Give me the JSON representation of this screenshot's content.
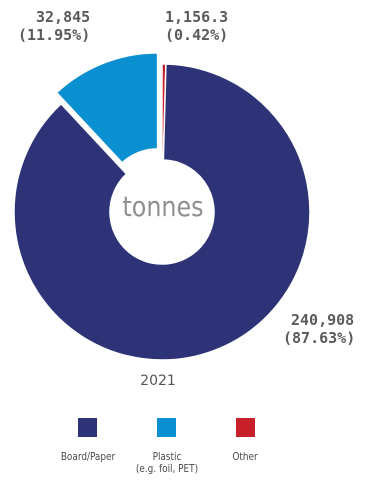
{
  "chart_data": {
    "type": "pie",
    "title": "",
    "center_label": "tonnes",
    "caption": "2021",
    "categories": [
      "Board/Paper",
      "Plastic (e.g. foil, PET)",
      "Other"
    ],
    "values": [
      240908,
      32845,
      1156.3
    ],
    "percentages": [
      87.63,
      11.95,
      0.42
    ],
    "colors": [
      "#2e3377",
      "#0a8fd0",
      "#c8202b"
    ],
    "labels": [
      {
        "value": "240,908",
        "percent": "(87.63%)"
      },
      {
        "value": "32,845",
        "percent": "(11.95%)"
      },
      {
        "value": "1,156.3",
        "percent": "(0.42%)"
      }
    ],
    "legend": [
      {
        "label": "Board/Paper",
        "color": "#2e3377"
      },
      {
        "label_line1": "Plastic",
        "label_line2": "(e.g. foil, PET)",
        "color": "#0a8fd0"
      },
      {
        "label": "Other",
        "color": "#c8202b"
      }
    ],
    "legend_placement": "bottom",
    "exploded_slice": "Plastic (e.g. foil, PET)"
  }
}
